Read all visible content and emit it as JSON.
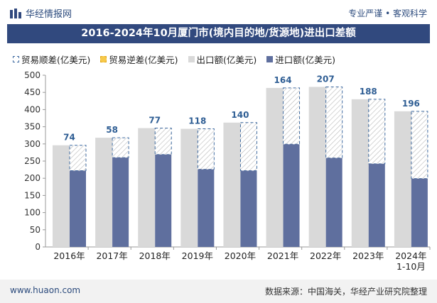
{
  "header": {
    "brand": "华经情报网",
    "tags": "专业严谨 • 客观科学"
  },
  "chart_data": {
    "type": "bar",
    "title": "2016-2024年10月厦门市(境内目的地/货源地)进出口差额",
    "categories": [
      "2016年",
      "2017年",
      "2018年",
      "2019年",
      "2020年",
      "2021年",
      "2022年",
      "2023年",
      "2024年\n1-10月"
    ],
    "series": [
      {
        "name": "贸易顺差(亿美元)",
        "values": [
          74,
          58,
          77,
          118,
          140,
          164,
          207,
          188,
          196
        ],
        "color": "#ffffff"
      },
      {
        "name": "贸易逆差(亿美元)",
        "values": [
          0,
          0,
          0,
          0,
          0,
          0,
          0,
          0,
          0
        ],
        "color": "#f7c94a"
      },
      {
        "name": "出口额(亿美元)",
        "values": [
          296,
          318,
          346,
          344,
          362,
          463,
          466,
          430,
          395
        ],
        "color": "#d9d9d9"
      },
      {
        "name": "进口额(亿美元)",
        "values": [
          222,
          260,
          269,
          226,
          222,
          299,
          259,
          242,
          199
        ],
        "color": "#5f6f9e"
      }
    ],
    "ylim": [
      0,
      500
    ],
    "yticks": [
      0,
      50,
      100,
      150,
      200,
      250,
      300,
      350,
      400,
      450,
      500
    ],
    "grid": false,
    "legend": "top",
    "label_color": "#2f5e94"
  },
  "footer": {
    "site": "www.huaon.com",
    "source": "数据来源：中国海关，华经产业研究院整理"
  }
}
